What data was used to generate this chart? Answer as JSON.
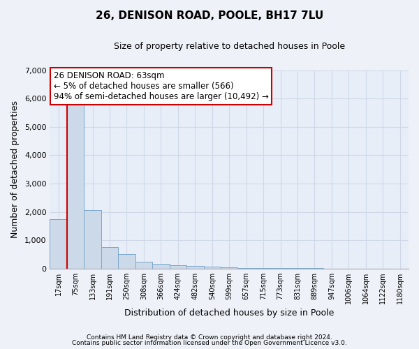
{
  "title1": "26, DENISON ROAD, POOLE, BH17 7LU",
  "title2": "Size of property relative to detached houses in Poole",
  "xlabel": "Distribution of detached houses by size in Poole",
  "ylabel": "Number of detached properties",
  "categories": [
    "17sqm",
    "75sqm",
    "133sqm",
    "191sqm",
    "250sqm",
    "308sqm",
    "366sqm",
    "424sqm",
    "482sqm",
    "540sqm",
    "599sqm",
    "657sqm",
    "715sqm",
    "773sqm",
    "831sqm",
    "889sqm",
    "947sqm",
    "1006sqm",
    "1064sqm",
    "1122sqm",
    "1180sqm"
  ],
  "values": [
    1750,
    5800,
    2050,
    750,
    500,
    250,
    170,
    120,
    80,
    60,
    30,
    20,
    15,
    10,
    8,
    5,
    3,
    2,
    2,
    1,
    1
  ],
  "bar_color": "#ccd9e8",
  "bar_edge_color": "#7aa8cc",
  "vline_color": "#cc0000",
  "annotation_line1": "26 DENISON ROAD: 63sqm",
  "annotation_line2": "← 5% of detached houses are smaller (566)",
  "annotation_line3": "94% of semi-detached houses are larger (10,492) →",
  "annotation_box_color": "#ffffff",
  "annotation_box_edge_color": "#cc0000",
  "ylim": [
    0,
    7000
  ],
  "yticks": [
    0,
    1000,
    2000,
    3000,
    4000,
    5000,
    6000,
    7000
  ],
  "footer1": "Contains HM Land Registry data © Crown copyright and database right 2024.",
  "footer2": "Contains public sector information licensed under the Open Government Licence v3.0.",
  "bg_color": "#eef2f8",
  "plot_bg_color": "#e8eef8",
  "grid_color": "#d0d8e8",
  "title1_fontsize": 11,
  "title2_fontsize": 9
}
